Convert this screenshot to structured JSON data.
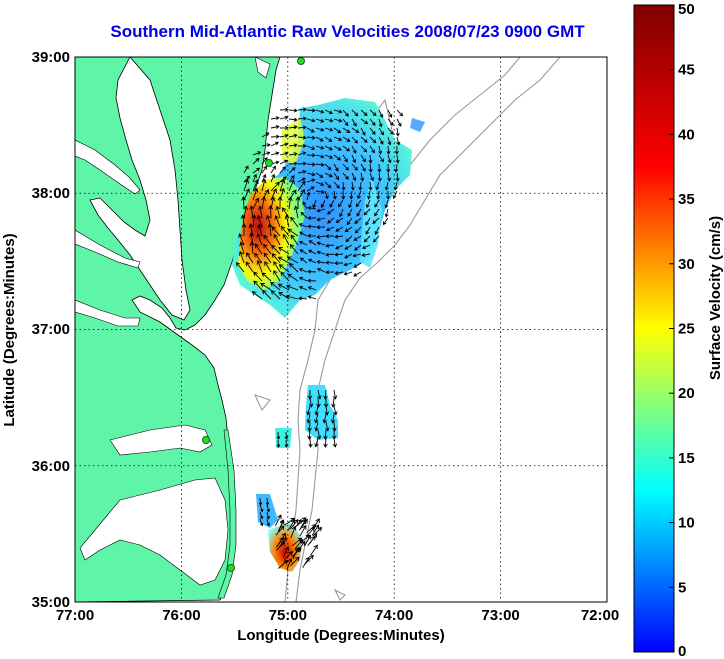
{
  "title": "Southern Mid-Atlantic Raw Velocities 2008/07/23 0900 GMT",
  "x_axis": {
    "label": "Longitude (Degrees:Minutes)",
    "ticks": [
      "77:00",
      "76:00",
      "75:00",
      "74:00",
      "73:00",
      "72:00"
    ]
  },
  "y_axis": {
    "label": "Latitude (Degrees:Minutes)",
    "ticks": [
      "39:00",
      "38:00",
      "37:00",
      "36:00",
      "35:00"
    ]
  },
  "colorbar": {
    "label": "Surface Velocity (cm/s)",
    "ticks": [
      "50",
      "45",
      "40",
      "35",
      "30",
      "25",
      "20",
      "15",
      "10",
      "5",
      "0"
    ],
    "min": 0,
    "max": 50
  },
  "colors": {
    "land": "#5ef5a8",
    "title": "#0000e6",
    "station": "#22dd22"
  },
  "extent": {
    "lon_min": -77,
    "lon_max": -72,
    "lat_min": 35,
    "lat_max": 39
  }
}
